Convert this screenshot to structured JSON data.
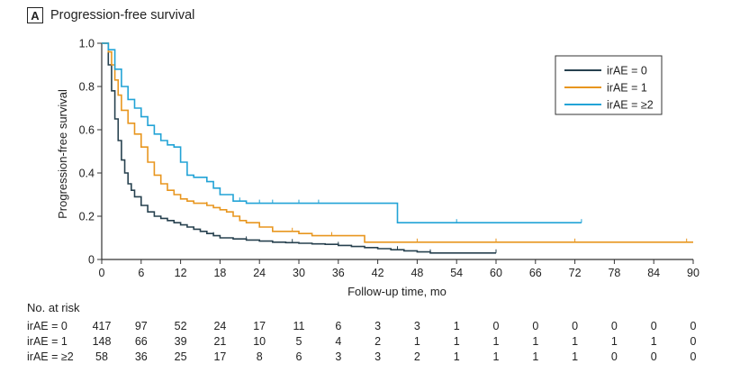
{
  "panel": {
    "letter": "A",
    "title": "Progression-free survival"
  },
  "chart_data": {
    "type": "line",
    "xlabel": "Follow-up time, mo",
    "ylabel": "Progression-free survival",
    "xlim": [
      0,
      90
    ],
    "ylim": [
      0,
      1.0
    ],
    "xticks": [
      0,
      6,
      12,
      18,
      24,
      30,
      36,
      42,
      48,
      54,
      60,
      66,
      72,
      78,
      84,
      90
    ],
    "yticks": [
      0,
      0.2,
      0.4,
      0.6,
      0.8,
      1.0
    ],
    "ytick_labels": [
      "0",
      "0.2",
      "0.4",
      "0.6",
      "0.8",
      "1.0"
    ],
    "grid": false,
    "legend_position": "top-right",
    "step": true,
    "series": [
      {
        "name": "irAE = 0",
        "color": "#27414f",
        "x": [
          0,
          1,
          1.5,
          2,
          2.5,
          3,
          3.5,
          4,
          4.5,
          5,
          6,
          7,
          8,
          9,
          10,
          11,
          12,
          13,
          14,
          15,
          16,
          17,
          18,
          20,
          22,
          24,
          26,
          28,
          30,
          32,
          34,
          36,
          38,
          40,
          42,
          44,
          46,
          48,
          50,
          52,
          54,
          56,
          58,
          60
        ],
        "y": [
          1.0,
          0.9,
          0.78,
          0.65,
          0.55,
          0.46,
          0.4,
          0.35,
          0.32,
          0.29,
          0.25,
          0.22,
          0.2,
          0.19,
          0.18,
          0.17,
          0.16,
          0.15,
          0.14,
          0.13,
          0.12,
          0.11,
          0.1,
          0.095,
          0.09,
          0.085,
          0.08,
          0.078,
          0.075,
          0.072,
          0.07,
          0.065,
          0.06,
          0.055,
          0.05,
          0.045,
          0.04,
          0.035,
          0.03,
          0.03,
          0.03,
          0.03,
          0.03,
          0.03
        ],
        "censor_x": [
          17,
          22,
          29,
          36,
          45,
          50,
          60
        ]
      },
      {
        "name": "irAE = 1",
        "color": "#e8961f",
        "x": [
          0,
          1,
          1.5,
          2,
          2.5,
          3,
          4,
          5,
          6,
          7,
          8,
          9,
          10,
          11,
          12,
          13,
          14,
          15,
          16,
          17,
          18,
          19,
          20,
          21,
          22,
          24,
          26,
          28,
          30,
          32,
          34,
          36,
          38,
          40,
          42,
          48,
          54,
          60,
          66,
          72,
          78,
          84,
          90
        ],
        "y": [
          1.0,
          0.96,
          0.9,
          0.83,
          0.76,
          0.69,
          0.63,
          0.58,
          0.52,
          0.45,
          0.39,
          0.35,
          0.32,
          0.3,
          0.28,
          0.27,
          0.26,
          0.26,
          0.25,
          0.24,
          0.23,
          0.22,
          0.2,
          0.18,
          0.17,
          0.15,
          0.13,
          0.13,
          0.12,
          0.11,
          0.11,
          0.11,
          0.11,
          0.08,
          0.08,
          0.08,
          0.08,
          0.08,
          0.08,
          0.08,
          0.08,
          0.08,
          0.08
        ],
        "censor_x": [
          16,
          21,
          29,
          35,
          48,
          60,
          72,
          89
        ]
      },
      {
        "name": "irAE = ≥2",
        "color": "#22a3d6",
        "x": [
          0,
          1,
          2,
          3,
          4,
          5,
          6,
          7,
          8,
          9,
          10,
          11,
          12,
          13,
          14,
          15,
          16,
          17,
          18,
          20,
          22,
          24,
          26,
          28,
          30,
          34,
          36,
          38,
          40,
          42,
          44,
          45,
          48,
          54,
          60,
          66,
          72,
          73
        ],
        "y": [
          1.0,
          0.97,
          0.88,
          0.8,
          0.74,
          0.7,
          0.66,
          0.62,
          0.58,
          0.55,
          0.53,
          0.52,
          0.45,
          0.39,
          0.38,
          0.38,
          0.36,
          0.33,
          0.3,
          0.27,
          0.26,
          0.26,
          0.26,
          0.26,
          0.26,
          0.26,
          0.26,
          0.26,
          0.26,
          0.26,
          0.26,
          0.17,
          0.17,
          0.17,
          0.17,
          0.17,
          0.17,
          0.17
        ],
        "censor_x": [
          21,
          24,
          26,
          30,
          33,
          54,
          73
        ]
      }
    ]
  },
  "risk_table": {
    "heading": "No. at risk",
    "rows": [
      {
        "label": "irAE = 0",
        "values": [
          "417",
          "97",
          "52",
          "24",
          "17",
          "11",
          "6",
          "3",
          "3",
          "1",
          "0",
          "0",
          "0",
          "0",
          "0",
          "0"
        ]
      },
      {
        "label": "irAE = 1",
        "values": [
          "148",
          "66",
          "39",
          "21",
          "10",
          "5",
          "4",
          "2",
          "1",
          "1",
          "1",
          "1",
          "1",
          "1",
          "1",
          "0"
        ]
      },
      {
        "label": "irAE = ≥2",
        "values": [
          "58",
          "36",
          "25",
          "17",
          "8",
          "6",
          "3",
          "3",
          "2",
          "1",
          "1",
          "1",
          "1",
          "0",
          "0",
          "0"
        ]
      }
    ]
  }
}
